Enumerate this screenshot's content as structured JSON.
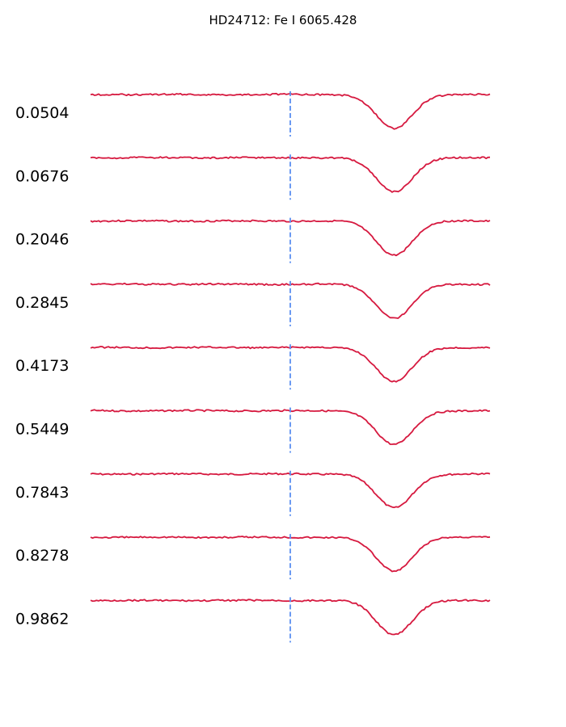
{
  "chart_data": {
    "type": "line",
    "title": "HD24712: Fe I 6065.428",
    "xlabel": "",
    "ylabel": "",
    "axes_visible": false,
    "grid": false,
    "layout": "stacked spectra, one per rotational phase, offset vertically",
    "line_color": "#d6193f",
    "marker_color": "#5b8ff0",
    "marker": {
      "style": "dashed vertical line",
      "x": 0.0
    },
    "x_range": [
      -50,
      50
    ],
    "line_profile": {
      "center": 26,
      "depth": 0.045,
      "width": 4.5
    },
    "phases": [
      "0.0504",
      "0.0676",
      "0.2046",
      "0.2845",
      "0.4173",
      "0.5449",
      "0.7843",
      "0.8278",
      "0.9862"
    ]
  }
}
